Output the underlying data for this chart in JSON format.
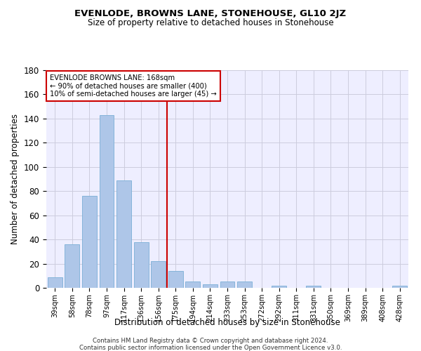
{
  "title": "EVENLODE, BROWNS LANE, STONEHOUSE, GL10 2JZ",
  "subtitle": "Size of property relative to detached houses in Stonehouse",
  "xlabel": "Distribution of detached houses by size in Stonehouse",
  "ylabel": "Number of detached properties",
  "footer_line1": "Contains HM Land Registry data © Crown copyright and database right 2024.",
  "footer_line2": "Contains public sector information licensed under the Open Government Licence v3.0.",
  "bar_labels": [
    "39sqm",
    "58sqm",
    "78sqm",
    "97sqm",
    "117sqm",
    "136sqm",
    "156sqm",
    "175sqm",
    "194sqm",
    "214sqm",
    "233sqm",
    "253sqm",
    "272sqm",
    "292sqm",
    "311sqm",
    "331sqm",
    "350sqm",
    "369sqm",
    "389sqm",
    "408sqm",
    "428sqm"
  ],
  "bar_values": [
    9,
    36,
    76,
    143,
    89,
    38,
    22,
    14,
    5,
    3,
    5,
    5,
    0,
    2,
    0,
    2,
    0,
    0,
    0,
    0,
    2
  ],
  "bar_color": "#aec6e8",
  "bar_edgecolor": "#7aaed6",
  "vline_x": 6.5,
  "vline_color": "#cc0000",
  "annotation_line1": "EVENLODE BROWNS LANE: 168sqm",
  "annotation_line2": "← 90% of detached houses are smaller (400)",
  "annotation_line3": "10% of semi-detached houses are larger (45) →",
  "annotation_box_edgecolor": "#cc0000",
  "annotation_box_facecolor": "#ffffff",
  "background_color": "#eeeeff",
  "grid_color": "#ccccdd",
  "ylim": [
    0,
    180
  ],
  "yticks": [
    0,
    20,
    40,
    60,
    80,
    100,
    120,
    140,
    160,
    180
  ]
}
